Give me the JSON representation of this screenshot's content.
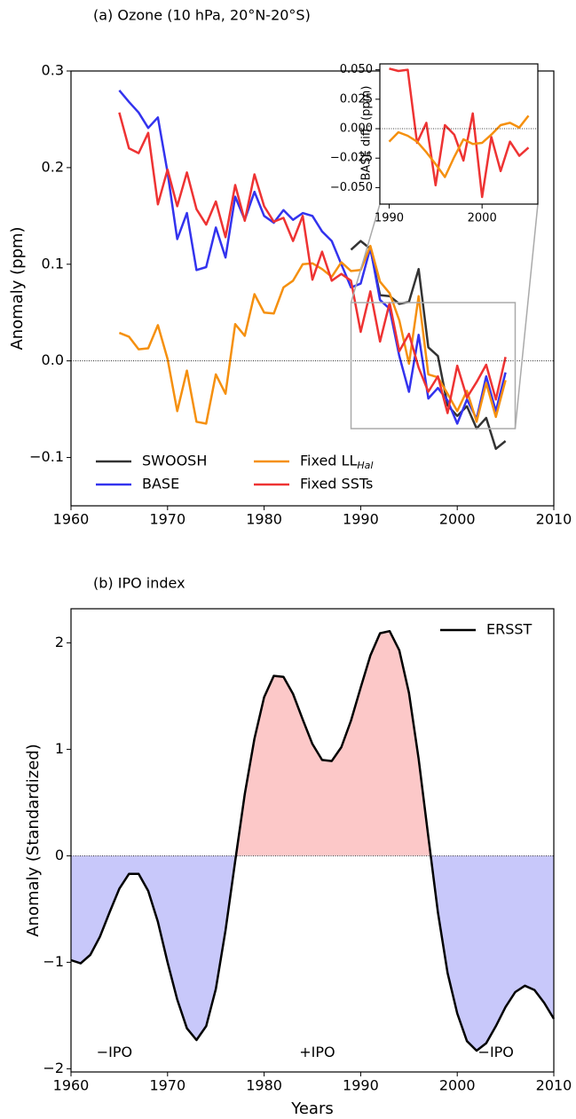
{
  "chart_data": [
    {
      "type": "line",
      "title": "(a)  Ozone (10 hPa, 20°N-20°S)",
      "ylabel": "Anomaly (ppm)",
      "x": [
        1965,
        1966,
        1967,
        1968,
        1969,
        1970,
        1971,
        1972,
        1973,
        1974,
        1975,
        1976,
        1977,
        1978,
        1979,
        1980,
        1981,
        1982,
        1983,
        1984,
        1985,
        1986,
        1987,
        1988,
        1989,
        1990,
        1991,
        1992,
        1993,
        1994,
        1995,
        1996,
        1997,
        1998,
        1999,
        2000,
        2001,
        2002,
        2003,
        2004,
        2005
      ],
      "series": [
        {
          "name": "SWOOSH",
          "color": "#333333",
          "values": [
            null,
            null,
            null,
            null,
            null,
            null,
            null,
            null,
            null,
            null,
            null,
            null,
            null,
            null,
            null,
            null,
            null,
            null,
            null,
            null,
            null,
            null,
            null,
            null,
            0.115,
            0.124,
            0.116,
            0.068,
            0.067,
            0.059,
            0.061,
            0.095,
            0.014,
            0.005,
            -0.046,
            -0.057,
            -0.047,
            -0.07,
            -0.059,
            -0.091,
            -0.083
          ]
        },
        {
          "name": "BASE",
          "color": "#3333ee",
          "values": [
            0.28,
            0.268,
            0.257,
            0.241,
            0.252,
            0.195,
            0.126,
            0.153,
            0.094,
            0.097,
            0.138,
            0.107,
            0.17,
            0.146,
            0.175,
            0.15,
            0.143,
            0.156,
            0.146,
            0.153,
            0.15,
            0.134,
            0.124,
            0.1,
            0.076,
            0.08,
            0.117,
            0.063,
            0.054,
            0.005,
            -0.032,
            0.027,
            -0.039,
            -0.028,
            -0.041,
            -0.065,
            -0.04,
            -0.06,
            -0.016,
            -0.052,
            -0.012
          ]
        },
        {
          "name": "Fixed LL",
          "name_subscript": "Hal",
          "color": "#f5900f",
          "values": [
            0.029,
            0.025,
            0.012,
            0.013,
            0.037,
            0.002,
            -0.052,
            -0.01,
            -0.063,
            -0.065,
            -0.014,
            -0.034,
            0.038,
            0.026,
            0.069,
            0.05,
            0.049,
            0.076,
            0.083,
            0.1,
            0.101,
            0.095,
            0.087,
            0.102,
            0.093,
            0.094,
            0.119,
            0.082,
            0.07,
            0.042,
            -0.003,
            0.067,
            -0.014,
            -0.017,
            -0.034,
            -0.052,
            -0.031,
            -0.063,
            -0.023,
            -0.058,
            -0.02
          ]
        },
        {
          "name": "Fixed SSTs",
          "color": "#ee3333",
          "values": [
            0.257,
            0.22,
            0.215,
            0.236,
            0.162,
            0.198,
            0.16,
            0.195,
            0.157,
            0.141,
            0.165,
            0.128,
            0.182,
            0.145,
            0.193,
            0.16,
            0.144,
            0.148,
            0.124,
            0.15,
            0.084,
            0.113,
            0.083,
            0.09,
            0.083,
            0.03,
            0.072,
            0.02,
            0.06,
            0.01,
            0.028,
            -0.007,
            -0.032,
            -0.016,
            -0.054,
            -0.005,
            -0.038,
            -0.022,
            -0.004,
            -0.04,
            0.004
          ]
        }
      ],
      "xlim": [
        1960,
        2010
      ],
      "xticks": [
        1960,
        1970,
        1980,
        1990,
        2000,
        2010
      ],
      "ylim": [
        -0.15,
        0.3
      ],
      "yticks": [
        {
          "value": -0.1,
          "label": "−0.1"
        },
        {
          "value": 0,
          "label": "0.0"
        },
        {
          "value": 0.1,
          "label": "0.1"
        },
        {
          "value": 0.2,
          "label": "0.2"
        },
        {
          "value": 0.3,
          "label": "0.3"
        }
      ],
      "zero_line": true,
      "legend": "lower left"
    },
    {
      "type": "line",
      "ylabel": "BASE diff. (ppm)",
      "x": [
        1990,
        1991,
        1992,
        1993,
        1994,
        1995,
        1996,
        1997,
        1998,
        1999,
        2000,
        2001,
        2002,
        2003,
        2004,
        2005
      ],
      "series": [
        {
          "color": "#ee3333",
          "values": [
            0.051,
            0.049,
            0.05,
            -0.012,
            0.005,
            -0.048,
            0.003,
            -0.005,
            -0.027,
            0.013,
            -0.058,
            -0.007,
            -0.036,
            -0.011,
            -0.023,
            -0.016
          ]
        },
        {
          "color": "#f5900f",
          "values": [
            -0.011,
            -0.003,
            -0.006,
            -0.011,
            -0.02,
            -0.03,
            -0.041,
            -0.024,
            -0.009,
            -0.013,
            -0.012,
            -0.005,
            0.003,
            0.005,
            0.001,
            0.011
          ]
        }
      ],
      "xlim": [
        1989,
        2006
      ],
      "xticks": [
        1990,
        2000
      ],
      "ylim": [
        -0.064,
        0.055
      ],
      "yticks": [
        {
          "value": -0.05,
          "label": "−0.050"
        },
        {
          "value": -0.025,
          "label": "−0.025"
        },
        {
          "value": 0,
          "label": "0.000"
        },
        {
          "value": 0.025,
          "label": "0.025"
        },
        {
          "value": 0.05,
          "label": "0.050"
        }
      ],
      "zero_line": true
    },
    {
      "type": "area",
      "title": "(b)  IPO index",
      "xlabel": "Years",
      "ylabel": "Anomaly (Standardized)",
      "x": [
        1960,
        1961,
        1962,
        1963,
        1964,
        1965,
        1966,
        1967,
        1968,
        1969,
        1970,
        1971,
        1972,
        1973,
        1974,
        1975,
        1976,
        1977,
        1978,
        1979,
        1980,
        1981,
        1982,
        1983,
        1984,
        1985,
        1986,
        1987,
        1988,
        1989,
        1990,
        1991,
        1992,
        1993,
        1994,
        1995,
        1996,
        1997,
        1998,
        1999,
        2000,
        2001,
        2002,
        2003,
        2004,
        2005,
        2006,
        2007,
        2008,
        2009,
        2010
      ],
      "series": [
        {
          "name": "ERSST",
          "color": "#000000",
          "positive_color": "#fcc8c8",
          "negative_color": "#c8c8fa",
          "values": [
            -0.98,
            -1.01,
            -0.93,
            -0.76,
            -0.53,
            -0.31,
            -0.17,
            -0.17,
            -0.33,
            -0.62,
            -1.0,
            -1.35,
            -1.62,
            -1.73,
            -1.6,
            -1.25,
            -0.7,
            -0.05,
            0.58,
            1.1,
            1.49,
            1.69,
            1.68,
            1.52,
            1.28,
            1.05,
            0.9,
            0.89,
            1.02,
            1.27,
            1.58,
            1.88,
            2.09,
            2.11,
            1.93,
            1.53,
            0.91,
            0.18,
            -0.53,
            -1.1,
            -1.48,
            -1.74,
            -1.83,
            -1.76,
            -1.6,
            -1.42,
            -1.28,
            -1.22,
            -1.26,
            -1.38,
            -1.53
          ]
        }
      ],
      "xlim": [
        1960,
        2010
      ],
      "xticks": [
        1960,
        1970,
        1980,
        1990,
        2000,
        2010
      ],
      "ylim": [
        -2.03,
        2.32
      ],
      "yticks": [
        {
          "value": -2,
          "label": "−2"
        },
        {
          "value": -1,
          "label": "−1"
        },
        0,
        1,
        2
      ],
      "zero_line": true,
      "legend": "upper right",
      "annotations": [
        {
          "text": "−IPO",
          "x": 1964.5,
          "y": -1.85,
          "color": "#1a1acc"
        },
        {
          "text": "+IPO",
          "x": 1985.5,
          "y": -1.85,
          "color": "#dd1111"
        },
        {
          "text": "−IPO",
          "x": 2004,
          "y": -1.85,
          "color": "#1a1acc"
        }
      ]
    }
  ]
}
